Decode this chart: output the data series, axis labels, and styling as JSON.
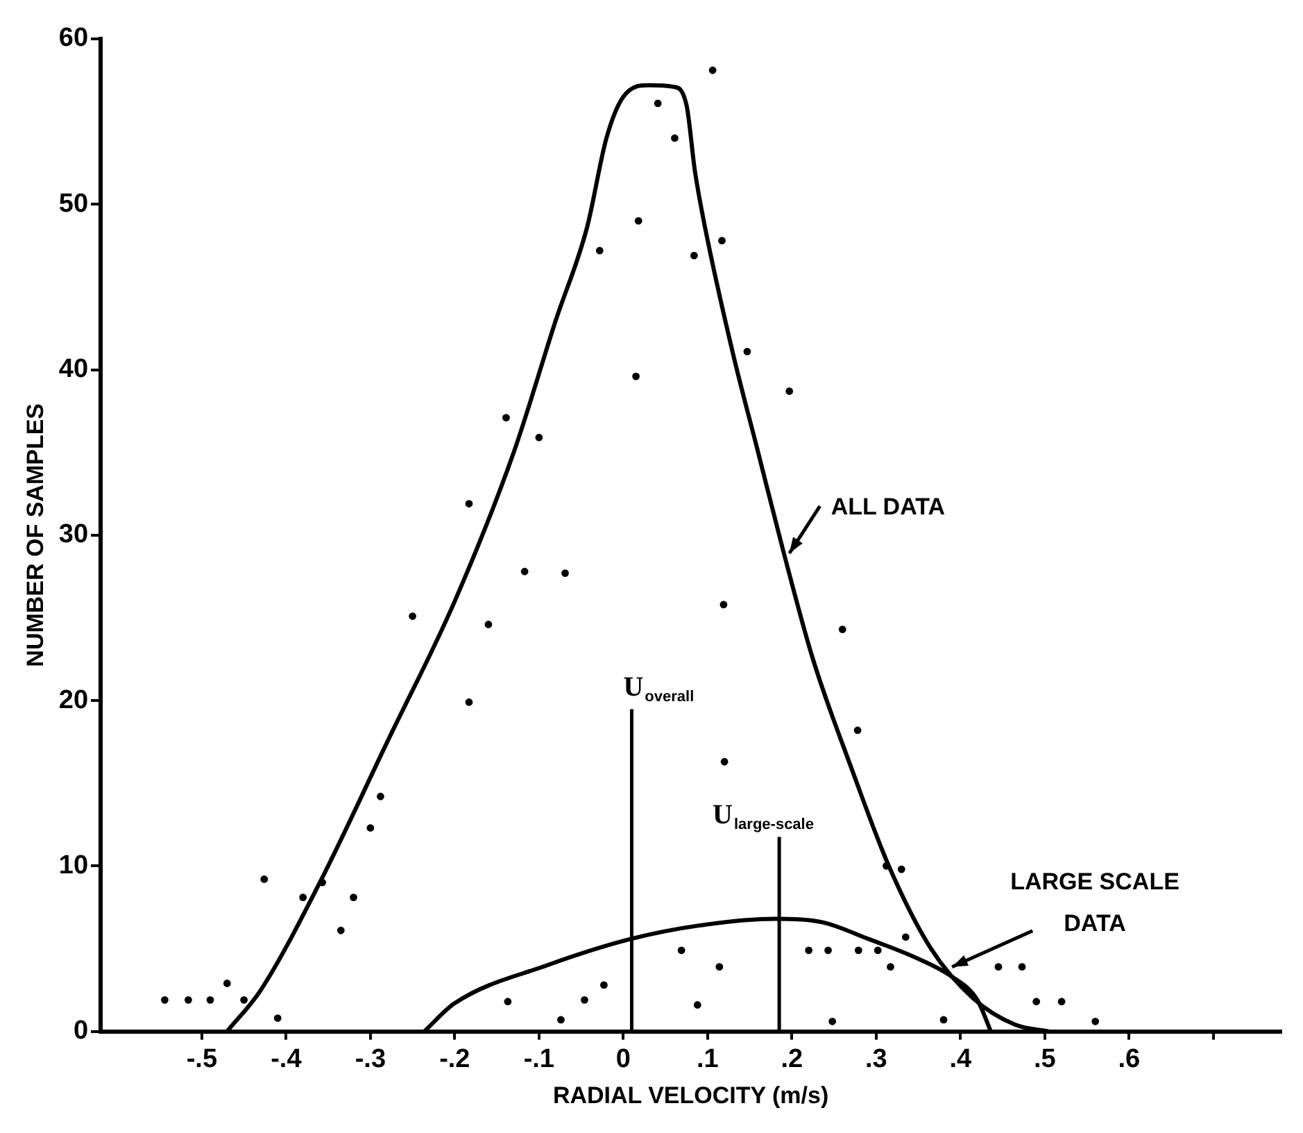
{
  "chart_data": {
    "type": "line",
    "xlabel": "RADIAL VELOCITY (m/s)",
    "ylabel": "NUMBER OF SAMPLES",
    "xlim": [
      -0.62,
      0.78
    ],
    "ylim": [
      0,
      60
    ],
    "xticks": [
      {
        "value": -0.5,
        "label": "-.5"
      },
      {
        "value": -0.4,
        "label": "-.4"
      },
      {
        "value": -0.3,
        "label": "-.3"
      },
      {
        "value": -0.2,
        "label": "-.2"
      },
      {
        "value": -0.1,
        "label": "-.1"
      },
      0,
      {
        "value": 0.1,
        "label": ".1"
      },
      {
        "value": 0.2,
        "label": ".2"
      },
      {
        "value": 0.3,
        "label": ".3"
      },
      {
        "value": 0.4,
        "label": ".4"
      },
      {
        "value": 0.5,
        "label": ".5"
      },
      {
        "value": 0.6,
        "label": ".6"
      },
      {
        "value": 0.7,
        "label": null
      }
    ],
    "yticks": [
      0,
      10,
      20,
      30,
      40,
      50,
      60
    ],
    "grid": false,
    "legend": false,
    "series": [
      {
        "color": "#000000",
        "marker": "none",
        "x": [
          -0.47,
          -0.43,
          -0.36,
          -0.28,
          -0.2,
          -0.13,
          -0.08,
          -0.043,
          -0.02,
          0,
          0.03,
          0.06,
          0.075,
          0.085,
          0.097,
          0.13,
          0.16,
          0.19,
          0.225,
          0.27,
          0.315,
          0.365,
          0.415,
          0.465,
          0.505
        ],
        "values": [
          0,
          2.5,
          9,
          17.5,
          26,
          35,
          43,
          48.6,
          54,
          56.5,
          57.2,
          57.1,
          56,
          52,
          48.6,
          41,
          35,
          29,
          22.5,
          16,
          10,
          5,
          2,
          0.4,
          0
        ]
      },
      {
        "color": "#000000",
        "marker": "none",
        "x": [
          -0.236,
          -0.2,
          -0.09,
          0.01,
          0.09,
          0.18,
          0.236,
          0.29,
          0.345,
          0.39,
          0.42,
          0.436
        ],
        "values": [
          0,
          1.7,
          4,
          5.6,
          6.4,
          6.8,
          6.6,
          5.6,
          4.5,
          3.3,
          1.9,
          0
        ]
      },
      {
        "type": "scatter",
        "color": "#000000",
        "marker": "circle",
        "x": [
          0.106,
          0.041,
          0.061,
          0.018,
          -0.028,
          0.117,
          0.084,
          0.015,
          -0.139,
          -0.1,
          0.147,
          0.197,
          -0.183,
          -0.117,
          -0.069,
          -0.25,
          -0.16,
          0.119,
          -0.183,
          0.26,
          0.278,
          0.12,
          -0.288,
          -0.3,
          0.312,
          0.33,
          -0.426,
          -0.38,
          -0.357,
          -0.32,
          -0.335,
          -0.544,
          -0.516,
          -0.49,
          -0.47,
          -0.45,
          -0.41,
          -0.2,
          -0.137,
          -0.074,
          -0.046,
          -0.023,
          0.069,
          0.114,
          0.088,
          0.22,
          0.243,
          0.279,
          0.302,
          0.317,
          0.335,
          0.248,
          0.38,
          0.445,
          0.473,
          0.49,
          0.52,
          0.56
        ],
        "values": [
          58.1,
          56.1,
          54,
          49,
          47.2,
          47.8,
          46.9,
          39.6,
          37.1,
          35.9,
          41.1,
          38.7,
          31.9,
          27.8,
          27.7,
          25.1,
          24.6,
          25.8,
          19.9,
          24.3,
          18.2,
          16.3,
          14.2,
          12.3,
          10,
          9.8,
          9.2,
          8.1,
          9,
          8.1,
          6.1,
          1.9,
          1.9,
          1.9,
          2.9,
          1.9,
          0.8,
          null,
          1.8,
          0.7,
          1.9,
          2.8,
          4.9,
          3.9,
          1.6,
          4.9,
          4.9,
          4.9,
          4.9,
          3.9,
          5.7,
          0.6,
          0.7,
          3.9,
          3.9,
          1.8,
          1.8,
          0.6
        ]
      }
    ],
    "ref_lines": [
      {
        "axis": "x",
        "value": 0.01,
        "label": "U$_{overall}$"
      },
      {
        "axis": "x",
        "value": 0.185,
        "label": "U$_{large-scale}$"
      }
    ],
    "annotations": [
      {
        "text": "ALL DATA",
        "x": 0.197,
        "y": 28.9
      },
      {
        "text": "LARGE SCALE DATA",
        "x": 0.39,
        "y": 3.9
      }
    ]
  }
}
